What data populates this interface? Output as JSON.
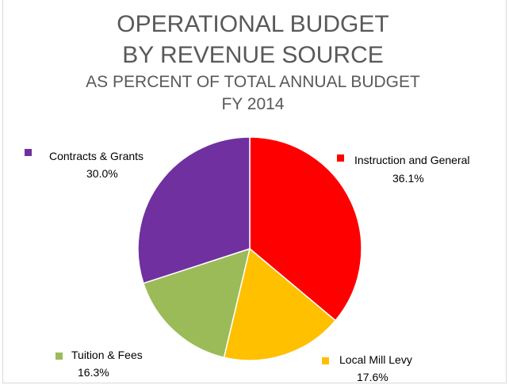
{
  "chart_data": {
    "type": "pie",
    "title": "OPERATIONAL BUDGET",
    "title_line2": "BY REVENUE SOURCE",
    "subtitle": "AS PERCENT OF TOTAL ANNUAL BUDGET",
    "subtitle_line2": "FY 2014",
    "series": [
      {
        "name": "Instruction and General",
        "value": 36.1,
        "label": "36.1%",
        "color": "#ff0000"
      },
      {
        "name": "Local Mill Levy",
        "value": 17.6,
        "label": "17.6%",
        "color": "#ffc000"
      },
      {
        "name": "Tuition & Fees",
        "value": 16.3,
        "label": "16.3%",
        "color": "#9bbb59"
      },
      {
        "name": "Contracts & Grants",
        "value": 30.0,
        "label": "30.0%",
        "color": "#7030a0"
      }
    ],
    "start_angle": "12 o'clock",
    "direction": "clockwise",
    "legend": "labels next to slices"
  }
}
